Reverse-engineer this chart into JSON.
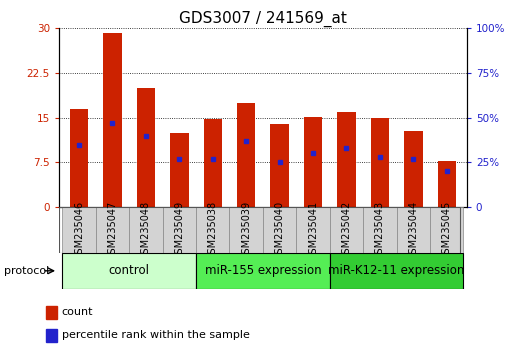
{
  "title": "GDS3007 / 241569_at",
  "samples": [
    "GSM235046",
    "GSM235047",
    "GSM235048",
    "GSM235049",
    "GSM235038",
    "GSM235039",
    "GSM235040",
    "GSM235041",
    "GSM235042",
    "GSM235043",
    "GSM235044",
    "GSM235045"
  ],
  "counts": [
    16.5,
    29.2,
    20.0,
    12.5,
    14.8,
    17.5,
    14.0,
    15.2,
    16.0,
    15.0,
    12.8,
    7.8
  ],
  "percentile_ranks_pct": [
    35,
    47,
    40,
    27,
    27,
    37,
    25,
    30,
    33,
    28,
    27,
    20
  ],
  "groups": [
    {
      "label": "control",
      "start": 0,
      "end": 4,
      "color": "#ccffcc"
    },
    {
      "label": "miR-155 expression",
      "start": 4,
      "end": 8,
      "color": "#55ee55"
    },
    {
      "label": "miR-K12-11 expression",
      "start": 8,
      "end": 12,
      "color": "#33cc33"
    }
  ],
  "bar_color": "#cc2200",
  "dot_color": "#2222cc",
  "left_axis_color": "#cc2200",
  "right_axis_color": "#2222cc",
  "ylim_left": [
    0,
    30
  ],
  "ylim_right": [
    0,
    100
  ],
  "yticks_left": [
    0,
    7.5,
    15,
    22.5,
    30
  ],
  "ytick_labels_left": [
    "0",
    "7.5",
    "15",
    "22.5",
    "30"
  ],
  "yticks_right": [
    0,
    25,
    50,
    75,
    100
  ],
  "ytick_labels_right": [
    "0",
    "25%",
    "50%",
    "75%",
    "100%"
  ],
  "background_color": "#ffffff",
  "bar_width": 0.55,
  "title_fontsize": 11,
  "tick_fontsize": 7.5,
  "group_label_fontsize": 8.5,
  "legend_count_label": "count",
  "legend_pct_label": "percentile rank within the sample"
}
